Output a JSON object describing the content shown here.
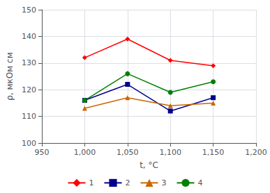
{
  "chart_data": {
    "type": "line",
    "xlabel": "t, °C",
    "ylabel": "ρ, мкОм см",
    "x": [
      1000,
      1050,
      1100,
      1150
    ],
    "series": [
      {
        "name": "1",
        "color": "#FF0000",
        "marker": "diamond",
        "values": [
          132,
          139,
          131,
          129
        ]
      },
      {
        "name": "2",
        "color": "#00008B",
        "marker": "square",
        "values": [
          116,
          122,
          112,
          117
        ]
      },
      {
        "name": "3",
        "color": "#CC6600",
        "marker": "triangle",
        "values": [
          113,
          117,
          114,
          115
        ]
      },
      {
        "name": "4",
        "color": "#008000",
        "marker": "circle",
        "values": [
          116,
          126,
          119,
          123
        ]
      }
    ],
    "xlim": [
      950,
      1200
    ],
    "ylim": [
      100,
      150
    ],
    "xticks": [
      950,
      1000,
      1050,
      1100,
      1150,
      1200
    ],
    "yticks": [
      100,
      110,
      120,
      130,
      140,
      150
    ],
    "grid": true,
    "legend": "bottom"
  }
}
